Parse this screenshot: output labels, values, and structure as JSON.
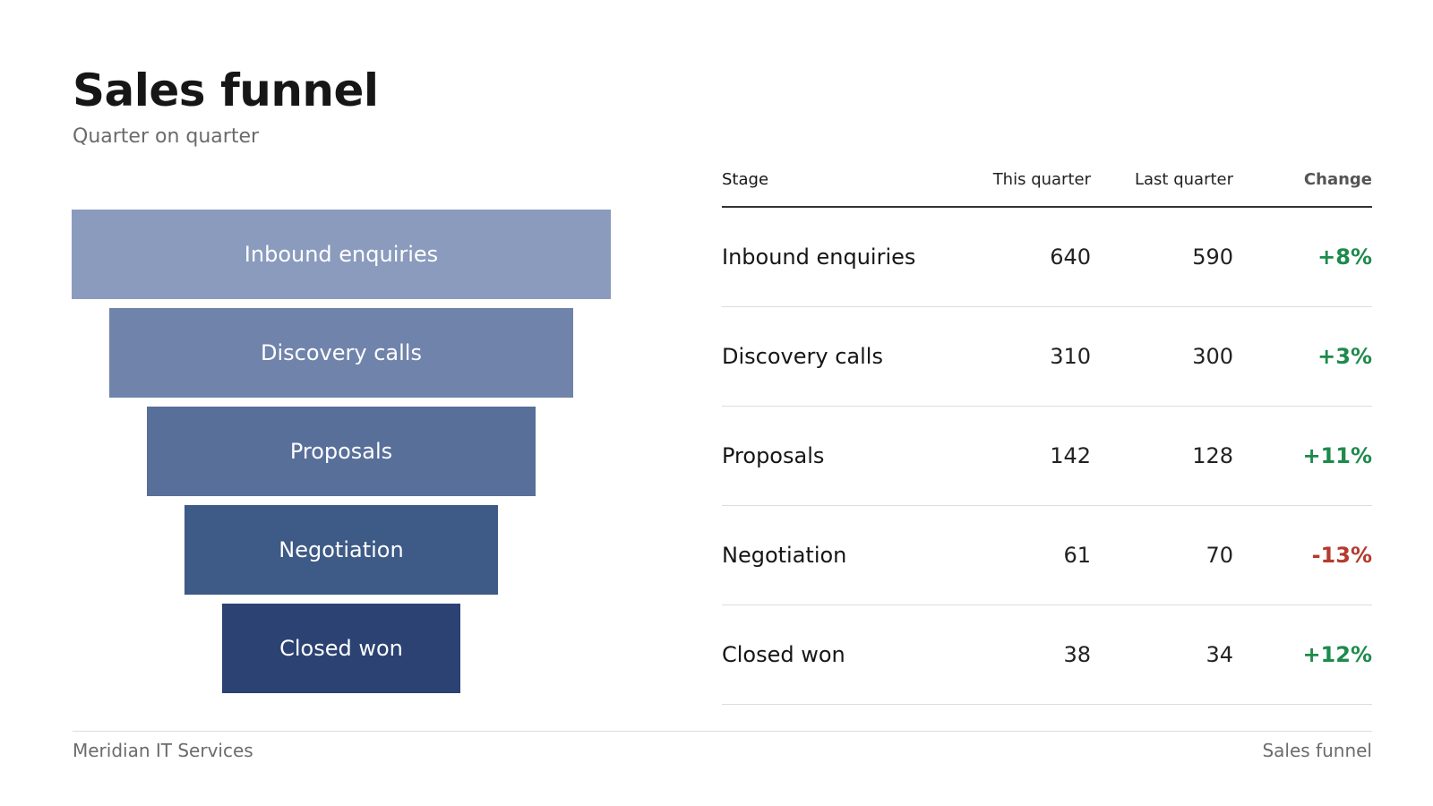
{
  "header": {
    "title": "Sales funnel",
    "subtitle": "Quarter on quarter"
  },
  "table": {
    "columns": {
      "stage": "Stage",
      "this_quarter": "This quarter",
      "last_quarter": "Last quarter",
      "change": "Change"
    },
    "rows": [
      {
        "stage": "Inbound enquiries",
        "this_quarter": "640",
        "last_quarter": "590",
        "change": "+8%",
        "trend": "up"
      },
      {
        "stage": "Discovery calls",
        "this_quarter": "310",
        "last_quarter": "300",
        "change": "+3%",
        "trend": "up"
      },
      {
        "stage": "Proposals",
        "this_quarter": "142",
        "last_quarter": "128",
        "change": "+11%",
        "trend": "up"
      },
      {
        "stage": "Negotiation",
        "this_quarter": "61",
        "last_quarter": "70",
        "change": "-13%",
        "trend": "down"
      },
      {
        "stage": "Closed won",
        "this_quarter": "38",
        "last_quarter": "34",
        "change": "+12%",
        "trend": "up"
      }
    ]
  },
  "chart_data": {
    "type": "bar",
    "categories": [
      "Inbound enquiries",
      "Discovery calls",
      "Proposals",
      "Negotiation",
      "Closed won"
    ],
    "values": [
      640,
      310,
      142,
      61,
      38
    ],
    "title": "Sales funnel",
    "subtitle": "Quarter on quarter",
    "colors": [
      "#8a9bbd",
      "#6f83ab",
      "#586f9a",
      "#3e5a86",
      "#2b4272"
    ]
  },
  "colors": {
    "positive": "#1e8a4c",
    "negative": "#b53a2e"
  },
  "footer": {
    "left": "Meridian IT Services",
    "right": "Sales funnel"
  }
}
